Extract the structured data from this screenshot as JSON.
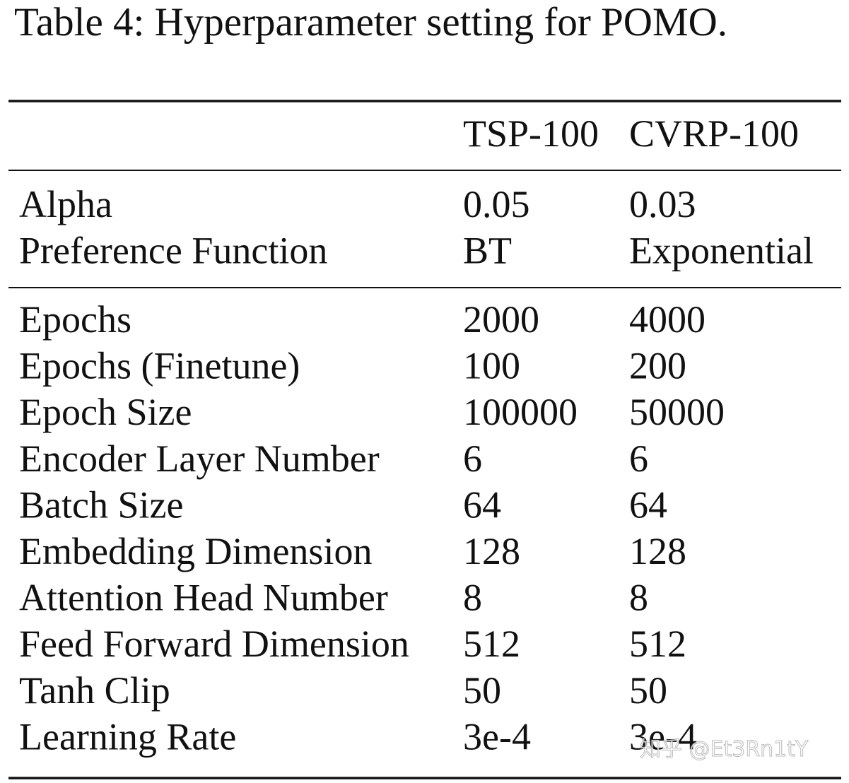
{
  "caption": "Table 4: Hyperparameter setting for POMO.",
  "table": {
    "header": [
      "TSP-100",
      "CVRP-100"
    ],
    "sections": [
      [
        [
          "Alpha",
          "0.05",
          "0.03"
        ],
        [
          "Preference Function",
          "BT",
          "Exponential"
        ]
      ],
      [
        [
          "Epochs",
          "2000",
          "4000"
        ],
        [
          "Epochs (Finetune)",
          "100",
          "200"
        ],
        [
          "Epoch Size",
          "100000",
          "50000"
        ],
        [
          "Encoder Layer Number",
          "6",
          "6"
        ],
        [
          "Batch Size",
          "64",
          "64"
        ],
        [
          "Embedding Dimension",
          "128",
          "128"
        ],
        [
          "Attention Head Number",
          "8",
          "8"
        ],
        [
          "Feed Forward Dimension",
          "512",
          "512"
        ],
        [
          "Tanh Clip",
          "50",
          "50"
        ],
        [
          "Learning Rate",
          "3e-4",
          "3e-4"
        ]
      ]
    ]
  },
  "watermark": "知乎 @Et3Rn1tY"
}
